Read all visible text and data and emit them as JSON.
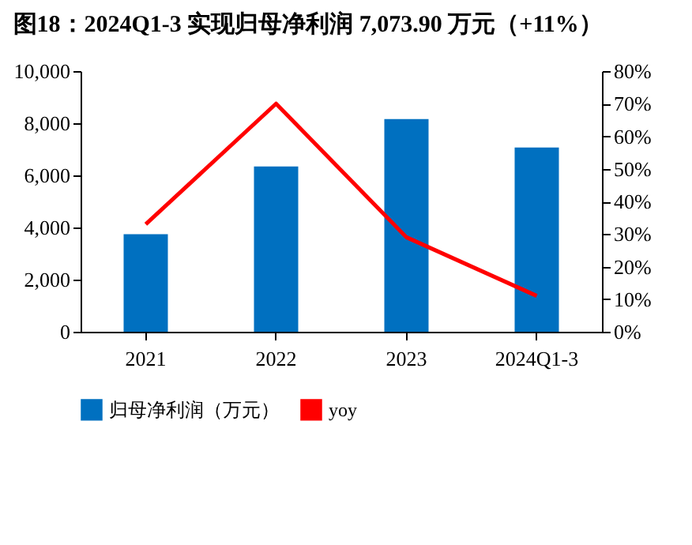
{
  "chart_data": {
    "type": "bar",
    "title": "图18：2024Q1-3 实现归母净利润 7,073.90 万元（+11%）",
    "categories": [
      "2021",
      "2022",
      "2023",
      "2024Q1-3"
    ],
    "series": [
      {
        "name": "归母净利润（万元）",
        "color": "#0070c0",
        "values": [
          3740,
          6340,
          8160,
          7070
        ]
      },
      {
        "name": "yoy",
        "type": "line",
        "axis": "y2",
        "color": "#ff0000",
        "values": [
          33,
          70,
          29,
          11
        ]
      }
    ],
    "ylim": [
      0,
      10000
    ],
    "yticks": [
      {
        "value": 0,
        "label": "0"
      },
      {
        "value": 2000,
        "label": "2,000"
      },
      {
        "value": 4000,
        "label": "4,000"
      },
      {
        "value": 6000,
        "label": "6,000"
      },
      {
        "value": 8000,
        "label": "8,000"
      },
      {
        "value": 10000,
        "label": "10,000"
      }
    ],
    "y2lim": [
      0,
      80
    ],
    "y2ticks": [
      {
        "value": 0,
        "label": "0%"
      },
      {
        "value": 10,
        "label": "10%"
      },
      {
        "value": 20,
        "label": "20%"
      },
      {
        "value": 30,
        "label": "30%"
      },
      {
        "value": 40,
        "label": "40%"
      },
      {
        "value": 50,
        "label": "50%"
      },
      {
        "value": 60,
        "label": "60%"
      },
      {
        "value": 70,
        "label": "70%"
      },
      {
        "value": 80,
        "label": "80%"
      }
    ],
    "grid": false,
    "legend": "bottom"
  }
}
